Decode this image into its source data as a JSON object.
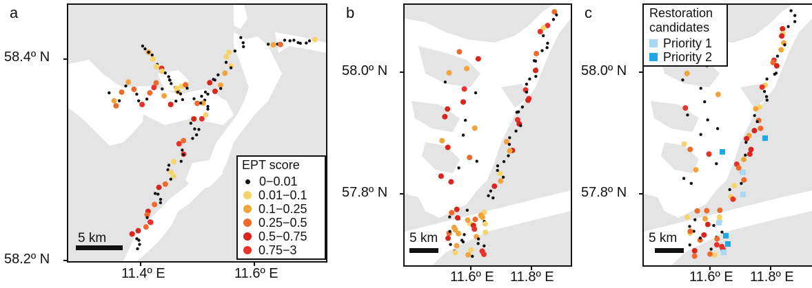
{
  "panels": {
    "a": {
      "letter": "a",
      "y_top": "58.4º N",
      "y_bottom": "58.2º N",
      "x_left": "11.4º E",
      "x_right": "11.6º E",
      "scale": "5 km"
    },
    "b": {
      "letter": "b",
      "y_top": "58.0º N",
      "y_bottom": "57.8º N",
      "x_left": "11.6º E",
      "x_right": "11.8º E",
      "scale": "5 km"
    },
    "c": {
      "letter": "c",
      "y_top": "58.0º N",
      "y_bottom": "57.8º N",
      "x_left": "11.6º E",
      "x_right": "11.8º E",
      "scale": "5 km"
    }
  },
  "legend_ept": {
    "title": "EPT score",
    "items": [
      {
        "label": "0−0.01",
        "color": "#111111"
      },
      {
        "label": "0.01−0.1",
        "color": "#f7d36b"
      },
      {
        "label": "0.1−0.25",
        "color": "#f2a33a"
      },
      {
        "label": "0.25−0.5",
        "color": "#ee6a2b"
      },
      {
        "label": "0.5−0.75",
        "color": "#d8261c"
      },
      {
        "label": "0.75−3",
        "color": "#e8332b"
      }
    ]
  },
  "legend_restoration": {
    "title_line1": "Restoration",
    "title_line2": "candidates",
    "items": [
      {
        "label": "Priority 1",
        "color": "#a9d8f5"
      },
      {
        "label": "Priority 2",
        "color": "#21a7e3"
      }
    ]
  },
  "colors": {
    "land": "#e4e4e4",
    "water": "#ffffff",
    "frame": "#111111"
  }
}
